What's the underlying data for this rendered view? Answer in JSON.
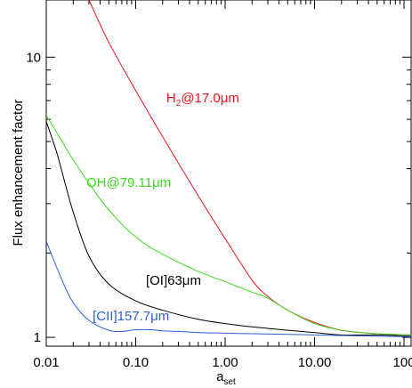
{
  "chart_data": {
    "type": "line",
    "title": "",
    "xlabel": "a",
    "xlabel_sub": "set",
    "ylabel": "Flux enhancement factor",
    "xscale": "log",
    "yscale": "log",
    "xlim": [
      0.01,
      120
    ],
    "ylim": [
      0.93,
      16
    ],
    "grid": false,
    "legend": "none",
    "x_ticks": [
      {
        "value": 0.01,
        "label": "0.01"
      },
      {
        "value": 0.1,
        "label": "0.10"
      },
      {
        "value": 1,
        "label": "1.00"
      },
      {
        "value": 10,
        "label": "10.00"
      },
      {
        "value": 100,
        "label": "100"
      }
    ],
    "y_ticks": [
      {
        "value": 1,
        "label": "1"
      },
      {
        "value": 10,
        "label": "10"
      }
    ],
    "series": [
      {
        "name": "H@17.0μm",
        "label_main": "H",
        "label_sub": "2",
        "label_rest": "@17.0μm",
        "color": "#e8141c",
        "label_at": [
          0.22,
          6.9
        ],
        "x": [
          0.03,
          0.05,
          0.1,
          0.2,
          0.5,
          1,
          2,
          3,
          5,
          10,
          20,
          50,
          120
        ],
        "y": [
          16,
          11.3,
          7.6,
          5.2,
          3.2,
          2.25,
          1.6,
          1.4,
          1.25,
          1.13,
          1.06,
          1.03,
          1.02
        ]
      },
      {
        "name": "OH@79.11μm",
        "label_main": "OH@79.11μm",
        "label_sub": "",
        "label_rest": "",
        "color": "#3ed91e",
        "label_at": [
          0.028,
          3.45
        ],
        "x": [
          0.01,
          0.015,
          0.02,
          0.03,
          0.05,
          0.1,
          0.2,
          0.5,
          1,
          2,
          3,
          5,
          10,
          20,
          50,
          120
        ],
        "y": [
          6.2,
          5.0,
          4.3,
          3.55,
          2.85,
          2.28,
          1.98,
          1.72,
          1.58,
          1.45,
          1.38,
          1.25,
          1.12,
          1.06,
          1.03,
          1.02
        ]
      },
      {
        "name": "[OI]63μm",
        "label_main": "[OI]63μm",
        "label_sub": "",
        "label_rest": "",
        "color": "#000000",
        "label_at": [
          0.13,
          1.54
        ],
        "x": [
          0.01,
          0.013,
          0.015,
          0.02,
          0.03,
          0.05,
          0.1,
          0.2,
          0.5,
          1,
          2,
          5,
          10,
          20,
          50,
          120
        ],
        "y": [
          5.9,
          4.6,
          3.9,
          2.8,
          1.95,
          1.55,
          1.35,
          1.25,
          1.16,
          1.12,
          1.09,
          1.06,
          1.04,
          1.02,
          1.02,
          1.01
        ]
      },
      {
        "name": "[CII]157.7μm",
        "label_main": "[CII]157.7μm",
        "label_sub": "",
        "label_rest": "",
        "color": "#2e5fd4",
        "label_at": [
          0.033,
          1.15
        ],
        "x": [
          0.01,
          0.015,
          0.02,
          0.03,
          0.05,
          0.07,
          0.1,
          0.15,
          0.2,
          0.3,
          0.5,
          1,
          2,
          5,
          10,
          20,
          50,
          120
        ],
        "y": [
          2.2,
          1.6,
          1.33,
          1.15,
          1.06,
          1.05,
          1.065,
          1.065,
          1.055,
          1.05,
          1.04,
          1.035,
          1.03,
          1.025,
          1.02,
          1.015,
          1.01,
          1.005
        ]
      }
    ]
  }
}
